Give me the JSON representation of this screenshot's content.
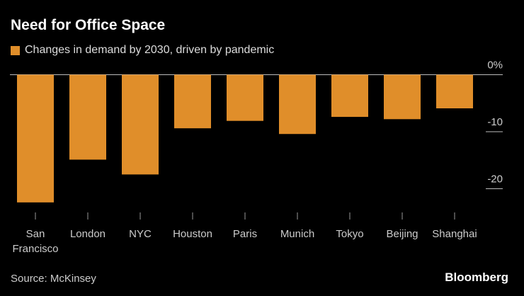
{
  "title": "Need for Office Space",
  "source": "Source: McKinsey",
  "brand": "Bloomberg",
  "chart_data": {
    "type": "bar",
    "categories": [
      "San Francisco",
      "London",
      "NYC",
      "Houston",
      "Paris",
      "Munich",
      "Tokyo",
      "Beijing",
      "Shanghai"
    ],
    "series": [
      {
        "name": "Changes in demand by 2030, driven by pandemic",
        "values": [
          -22.4,
          -14.9,
          -17.5,
          -9.4,
          -8.1,
          -10.4,
          -7.4,
          -7.8,
          -5.9
        ],
        "color": "#e08e2a"
      }
    ],
    "yticks": [
      0,
      -10,
      -20
    ],
    "ytick_labels": [
      "0%",
      "-10",
      "-20"
    ],
    "ylim": [
      -23,
      0
    ],
    "legend": "top-left"
  }
}
